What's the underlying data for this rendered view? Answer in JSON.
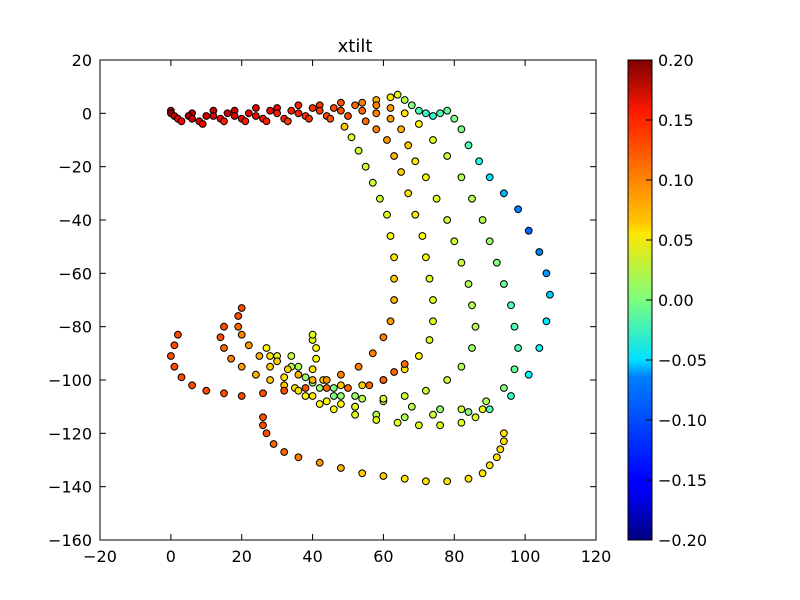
{
  "chart_data": {
    "type": "scatter",
    "title": "xtilt",
    "xlabel": "",
    "ylabel": "",
    "xlim": [
      -20,
      120
    ],
    "ylim": [
      -160,
      20
    ],
    "x_ticks": [
      -20,
      0,
      20,
      40,
      60,
      80,
      100,
      120
    ],
    "y_ticks": [
      -160,
      -140,
      -120,
      -100,
      -80,
      -60,
      -40,
      -20,
      0,
      20
    ],
    "grid": false,
    "colorbar": {
      "colormap": "jet",
      "range": [
        -0.2,
        0.2
      ],
      "ticks": [
        -0.2,
        -0.15,
        -0.1,
        -0.05,
        0.0,
        0.05,
        0.1,
        0.15,
        0.2
      ],
      "tick_labels": [
        "-0.20",
        "-0.15",
        "-0.10",
        "-0.05",
        "0.00",
        "0.05",
        "0.10",
        "0.15",
        "0.20"
      ]
    },
    "tracks": [
      {
        "points": [
          [
            0,
            1,
            0.18
          ],
          [
            6,
            0,
            0.18
          ],
          [
            12,
            1,
            0.17
          ],
          [
            18,
            1,
            0.17
          ],
          [
            24,
            2,
            0.16
          ],
          [
            30,
            2,
            0.15
          ],
          [
            36,
            3,
            0.14
          ],
          [
            42,
            3,
            0.13
          ],
          [
            48,
            4,
            0.12
          ],
          [
            54,
            4,
            0.1
          ],
          [
            58,
            5,
            0.08
          ],
          [
            62,
            6,
            0.06
          ],
          [
            64,
            7,
            0.04
          ],
          [
            66,
            5,
            0.02
          ],
          [
            68,
            3,
            0.0
          ],
          [
            70,
            1,
            -0.02
          ],
          [
            72,
            0,
            -0.03
          ],
          [
            74,
            -1,
            -0.03
          ],
          [
            76,
            0,
            -0.02
          ],
          [
            78,
            1,
            -0.01
          ],
          [
            80,
            -2,
            0.0
          ],
          [
            82,
            -6,
            0.0
          ],
          [
            84,
            -12,
            -0.02
          ],
          [
            87,
            -18,
            -0.04
          ],
          [
            90,
            -24,
            -0.06
          ],
          [
            94,
            -30,
            -0.08
          ],
          [
            98,
            -36,
            -0.1
          ],
          [
            101,
            -44,
            -0.11
          ],
          [
            104,
            -52,
            -0.1
          ],
          [
            106,
            -60,
            -0.09
          ],
          [
            107,
            -68,
            -0.07
          ],
          [
            106,
            -78,
            -0.06
          ],
          [
            104,
            -88,
            -0.05
          ],
          [
            101,
            -98,
            -0.05
          ],
          [
            96,
            -106,
            -0.03
          ],
          [
            90,
            -111,
            -0.02
          ],
          [
            84,
            -112,
            0.0
          ],
          [
            76,
            -111,
            0.01
          ],
          [
            68,
            -110,
            0.02
          ],
          [
            60,
            -108,
            0.02
          ],
          [
            52,
            -106,
            0.01
          ],
          [
            46,
            -103,
            0.0
          ]
        ]
      },
      {
        "points": [
          [
            0,
            0,
            0.19
          ],
          [
            5,
            -1,
            0.18
          ],
          [
            10,
            -1,
            0.17
          ],
          [
            16,
            0,
            0.17
          ],
          [
            22,
            0,
            0.16
          ],
          [
            28,
            1,
            0.15
          ],
          [
            34,
            1,
            0.14
          ],
          [
            40,
            2,
            0.13
          ],
          [
            46,
            2,
            0.12
          ],
          [
            52,
            3,
            0.11
          ],
          [
            58,
            3,
            0.1
          ],
          [
            62,
            2,
            0.09
          ],
          [
            66,
            0,
            0.06
          ],
          [
            70,
            -4,
            0.05
          ],
          [
            74,
            -10,
            0.04
          ],
          [
            78,
            -16,
            0.03
          ],
          [
            82,
            -24,
            0.02
          ],
          [
            85,
            -32,
            0.02
          ],
          [
            88,
            -40,
            0.02
          ],
          [
            90,
            -48,
            0.01
          ],
          [
            92,
            -56,
            0.0
          ],
          [
            94,
            -64,
            -0.01
          ],
          [
            96,
            -72,
            -0.02
          ],
          [
            97,
            -80,
            -0.02
          ],
          [
            98,
            -88,
            -0.02
          ],
          [
            97,
            -96,
            -0.01
          ],
          [
            94,
            -103,
            0.0
          ],
          [
            89,
            -108,
            0.02
          ],
          [
            82,
            -111,
            0.03
          ],
          [
            74,
            -113,
            0.03
          ],
          [
            66,
            -114,
            0.02
          ],
          [
            58,
            -113,
            0.02
          ],
          [
            52,
            -110,
            0.01
          ],
          [
            46,
            -106,
            0.0
          ],
          [
            40,
            -101,
            0.01
          ],
          [
            36,
            -95,
            0.02
          ],
          [
            34,
            -91,
            0.03
          ]
        ]
      },
      {
        "points": [
          [
            1,
            -1,
            0.17
          ],
          [
            6,
            -2,
            0.17
          ],
          [
            12,
            -1,
            0.16
          ],
          [
            18,
            -1,
            0.16
          ],
          [
            24,
            -1,
            0.15
          ],
          [
            30,
            0,
            0.14
          ],
          [
            36,
            0,
            0.14
          ],
          [
            42,
            1,
            0.13
          ],
          [
            48,
            1,
            0.12
          ],
          [
            54,
            1,
            0.11
          ],
          [
            58,
            0,
            0.1
          ],
          [
            62,
            -2,
            0.09
          ],
          [
            65,
            -6,
            0.08
          ],
          [
            67,
            -12,
            0.07
          ],
          [
            69,
            -18,
            0.06
          ],
          [
            72,
            -24,
            0.05
          ],
          [
            75,
            -32,
            0.04
          ],
          [
            78,
            -40,
            0.03
          ],
          [
            80,
            -48,
            0.03
          ],
          [
            82,
            -56,
            0.03
          ],
          [
            84,
            -64,
            0.02
          ],
          [
            85,
            -72,
            0.02
          ],
          [
            86,
            -80,
            0.02
          ],
          [
            85,
            -88,
            0.01
          ],
          [
            82,
            -95,
            0.02
          ],
          [
            78,
            -100,
            0.03
          ],
          [
            72,
            -104,
            0.03
          ],
          [
            66,
            -106,
            0.03
          ],
          [
            60,
            -107,
            0.03
          ],
          [
            54,
            -107,
            0.02
          ],
          [
            48,
            -106,
            0.01
          ],
          [
            42,
            -103,
            0.01
          ],
          [
            38,
            -99,
            0.01
          ],
          [
            34,
            -95,
            0.02
          ],
          [
            30,
            -91,
            0.04
          ],
          [
            27,
            -88,
            0.05
          ]
        ]
      },
      {
        "points": [
          [
            2,
            -2,
            0.16
          ],
          [
            8,
            -3,
            0.16
          ],
          [
            14,
            -2,
            0.15
          ],
          [
            20,
            -2,
            0.15
          ],
          [
            26,
            -2,
            0.14
          ],
          [
            32,
            -2,
            0.14
          ],
          [
            38,
            -1,
            0.13
          ],
          [
            44,
            -1,
            0.12
          ],
          [
            50,
            -1,
            0.12
          ],
          [
            55,
            -3,
            0.11
          ],
          [
            58,
            -6,
            0.1
          ],
          [
            61,
            -10,
            0.09
          ],
          [
            63,
            -16,
            0.08
          ],
          [
            65,
            -22,
            0.07
          ],
          [
            67,
            -30,
            0.06
          ],
          [
            69,
            -38,
            0.06
          ],
          [
            71,
            -46,
            0.05
          ],
          [
            72,
            -54,
            0.05
          ],
          [
            73,
            -62,
            0.04
          ],
          [
            74,
            -70,
            0.04
          ],
          [
            74,
            -78,
            0.04
          ],
          [
            73,
            -85,
            0.04
          ],
          [
            70,
            -91,
            0.05
          ],
          [
            66,
            -96,
            0.06
          ],
          [
            60,
            -100,
            0.07
          ],
          [
            54,
            -102,
            0.07
          ],
          [
            48,
            -102,
            0.07
          ],
          [
            43,
            -100,
            0.07
          ],
          [
            40,
            -96,
            0.06
          ],
          [
            41,
            -92,
            0.05
          ],
          [
            41,
            -88,
            0.05
          ],
          [
            40,
            -85,
            0.04
          ],
          [
            40,
            -83,
            0.04
          ]
        ]
      },
      {
        "points": [
          [
            3,
            -3,
            0.15
          ],
          [
            9,
            -4,
            0.15
          ],
          [
            15,
            -3,
            0.14
          ],
          [
            21,
            -3,
            0.14
          ],
          [
            27,
            -3,
            0.14
          ],
          [
            33,
            -3,
            0.13
          ],
          [
            39,
            -2,
            0.13
          ],
          [
            45,
            -2,
            0.12
          ],
          [
            49,
            -5,
            0.07
          ],
          [
            51,
            -9,
            0.04
          ],
          [
            53,
            -14,
            0.03
          ],
          [
            55,
            -20,
            0.03
          ],
          [
            57,
            -26,
            0.03
          ],
          [
            59,
            -32,
            0.03
          ],
          [
            61,
            -38,
            0.04
          ],
          [
            62,
            -46,
            0.05
          ],
          [
            63,
            -54,
            0.06
          ],
          [
            63,
            -62,
            0.07
          ],
          [
            63,
            -70,
            0.08
          ],
          [
            62,
            -78,
            0.09
          ],
          [
            60,
            -84,
            0.1
          ],
          [
            57,
            -90,
            0.1
          ],
          [
            53,
            -95,
            0.1
          ],
          [
            48,
            -98,
            0.1
          ],
          [
            44,
            -100,
            0.09
          ],
          [
            40,
            -100,
            0.08
          ],
          [
            36,
            -98,
            0.08
          ],
          [
            33,
            -96,
            0.07
          ],
          [
            30,
            -93,
            0.07
          ],
          [
            28,
            -91,
            0.06
          ]
        ]
      },
      {
        "points": [
          [
            20,
            -73,
            0.12
          ],
          [
            19,
            -76,
            0.12
          ],
          [
            19,
            -80,
            0.11
          ],
          [
            20,
            -83,
            0.1
          ],
          [
            22,
            -87,
            0.09
          ],
          [
            25,
            -91,
            0.08
          ],
          [
            28,
            -95,
            0.07
          ],
          [
            32,
            -99,
            0.06
          ],
          [
            35,
            -103,
            0.06
          ],
          [
            38,
            -106,
            0.05
          ],
          [
            42,
            -109,
            0.05
          ],
          [
            46,
            -111,
            0.05
          ],
          [
            52,
            -113,
            0.04
          ],
          [
            58,
            -115,
            0.04
          ],
          [
            64,
            -116,
            0.04
          ],
          [
            70,
            -117,
            0.04
          ],
          [
            76,
            -117,
            0.04
          ],
          [
            82,
            -116,
            0.04
          ],
          [
            86,
            -114,
            0.04
          ],
          [
            88,
            -111,
            0.04
          ]
        ]
      },
      {
        "points": [
          [
            15,
            -80,
            0.12
          ],
          [
            14,
            -84,
            0.12
          ],
          [
            15,
            -88,
            0.11
          ],
          [
            17,
            -92,
            0.1
          ],
          [
            20,
            -95,
            0.09
          ],
          [
            24,
            -98,
            0.08
          ],
          [
            28,
            -100,
            0.07
          ],
          [
            32,
            -102,
            0.07
          ],
          [
            36,
            -104,
            0.06
          ],
          [
            40,
            -106,
            0.06
          ],
          [
            44,
            -108,
            0.05
          ],
          [
            48,
            -109,
            0.05
          ],
          [
            52,
            -110,
            0.04
          ]
        ]
      },
      {
        "points": [
          [
            2,
            -83,
            0.12
          ],
          [
            1,
            -87,
            0.12
          ],
          [
            0,
            -91,
            0.12
          ],
          [
            1,
            -95,
            0.12
          ],
          [
            3,
            -99,
            0.12
          ],
          [
            6,
            -102,
            0.12
          ],
          [
            10,
            -104,
            0.12
          ],
          [
            15,
            -105,
            0.12
          ],
          [
            20,
            -106,
            0.12
          ],
          [
            26,
            -105,
            0.12
          ],
          [
            32,
            -104,
            0.12
          ],
          [
            38,
            -103,
            0.12
          ],
          [
            44,
            -103,
            0.11
          ],
          [
            50,
            -103,
            0.11
          ],
          [
            56,
            -102,
            0.11
          ],
          [
            60,
            -100,
            0.11
          ],
          [
            63,
            -97,
            0.11
          ],
          [
            66,
            -94,
            0.11
          ]
        ]
      },
      {
        "points": [
          [
            26,
            -114,
            0.12
          ],
          [
            26,
            -117,
            0.12
          ],
          [
            27,
            -120,
            0.12
          ],
          [
            29,
            -124,
            0.11
          ],
          [
            32,
            -127,
            0.11
          ],
          [
            36,
            -129,
            0.1
          ],
          [
            42,
            -131,
            0.09
          ],
          [
            48,
            -133,
            0.08
          ],
          [
            54,
            -135,
            0.07
          ],
          [
            60,
            -136,
            0.07
          ],
          [
            66,
            -137,
            0.06
          ],
          [
            72,
            -138,
            0.06
          ],
          [
            78,
            -138,
            0.06
          ],
          [
            84,
            -137,
            0.06
          ],
          [
            88,
            -135,
            0.06
          ],
          [
            90,
            -132,
            0.06
          ],
          [
            92,
            -129,
            0.06
          ],
          [
            93,
            -126,
            0.06
          ],
          [
            94,
            -123,
            0.06
          ],
          [
            94,
            -120,
            0.06
          ]
        ]
      }
    ]
  }
}
